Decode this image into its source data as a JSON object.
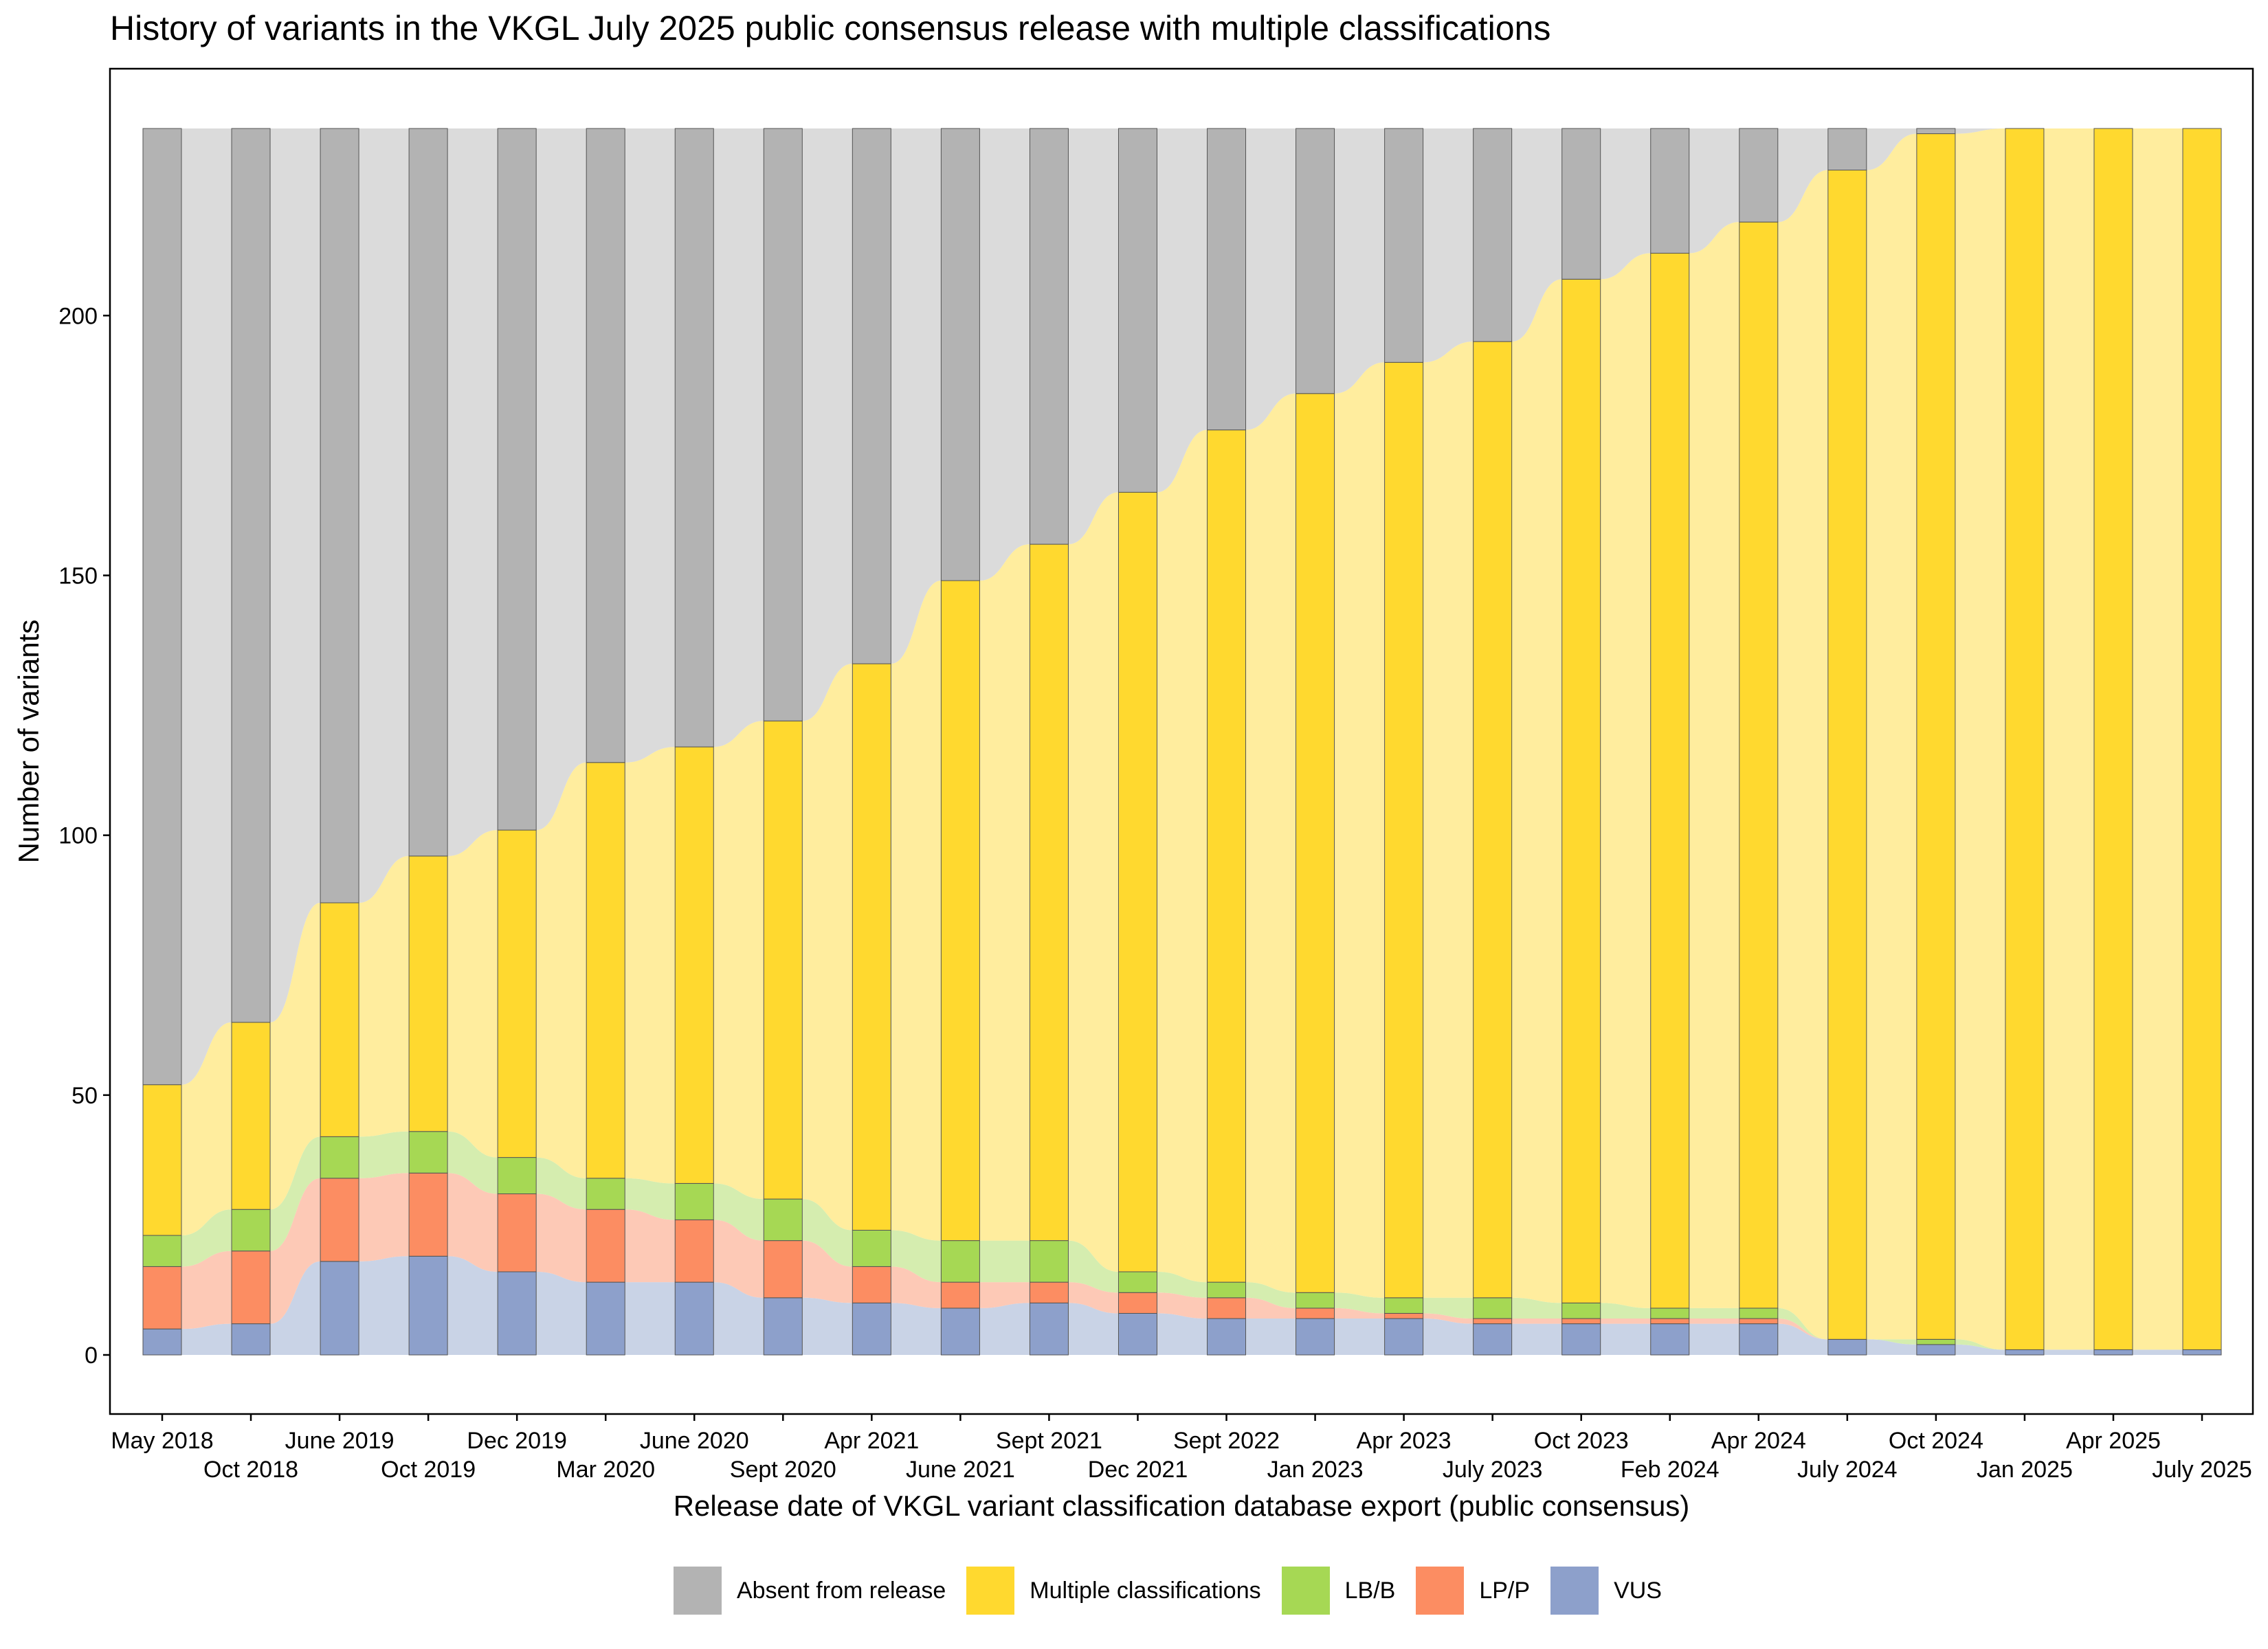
{
  "chart_data": {
    "type": "area",
    "title": "History of variants in the VKGL July 2025 public consensus release with multiple classifications",
    "xlabel": "Release date of VKGL variant classification database export (public consensus)",
    "ylabel": "Number of variants",
    "ylim": [
      0,
      236
    ],
    "y_ticks": [
      0,
      50,
      100,
      150,
      200
    ],
    "grid": false,
    "legend_position": "bottom",
    "categories": [
      "May 2018",
      "Oct 2018",
      "June 2019",
      "Oct 2019",
      "Dec 2019",
      "Mar 2020",
      "June 2020",
      "Sept 2020",
      "Apr 2021",
      "June 2021",
      "Sept 2021",
      "Dec 2021",
      "Sept 2022",
      "Jan 2023",
      "Apr 2023",
      "July 2023",
      "Oct 2023",
      "Feb 2024",
      "Apr 2024",
      "July 2024",
      "Oct 2024",
      "Jan 2025",
      "Apr 2025",
      "July 2025"
    ],
    "series": [
      {
        "name": "VUS",
        "color": "#8DA0CB",
        "values": [
          5,
          6,
          18,
          19,
          16,
          14,
          14,
          11,
          10,
          9,
          10,
          8,
          7,
          7,
          7,
          6,
          6,
          6,
          6,
          3,
          2,
          1,
          1,
          1
        ]
      },
      {
        "name": "LP/P",
        "color": "#FC8D62",
        "values": [
          12,
          14,
          16,
          16,
          15,
          14,
          12,
          11,
          7,
          5,
          4,
          4,
          4,
          2,
          1,
          1,
          1,
          1,
          1,
          0,
          0,
          0,
          0,
          0
        ]
      },
      {
        "name": "LB/B",
        "color": "#A6D854",
        "values": [
          6,
          8,
          8,
          8,
          7,
          6,
          7,
          8,
          7,
          8,
          8,
          4,
          3,
          3,
          3,
          4,
          3,
          2,
          2,
          0,
          1,
          0,
          0,
          0
        ]
      },
      {
        "name": "Multiple classifications",
        "color": "#FFD92F",
        "values": [
          29,
          36,
          45,
          53,
          63,
          80,
          84,
          92,
          109,
          127,
          134,
          150,
          164,
          173,
          180,
          184,
          197,
          203,
          209,
          225,
          232,
          235,
          235,
          235
        ]
      },
      {
        "name": "Absent from release",
        "color": "#B3B3B3",
        "values": [
          184,
          172,
          149,
          140,
          135,
          122,
          119,
          114,
          103,
          87,
          80,
          70,
          58,
          51,
          45,
          41,
          29,
          24,
          18,
          8,
          1,
          0,
          0,
          0
        ]
      }
    ]
  }
}
